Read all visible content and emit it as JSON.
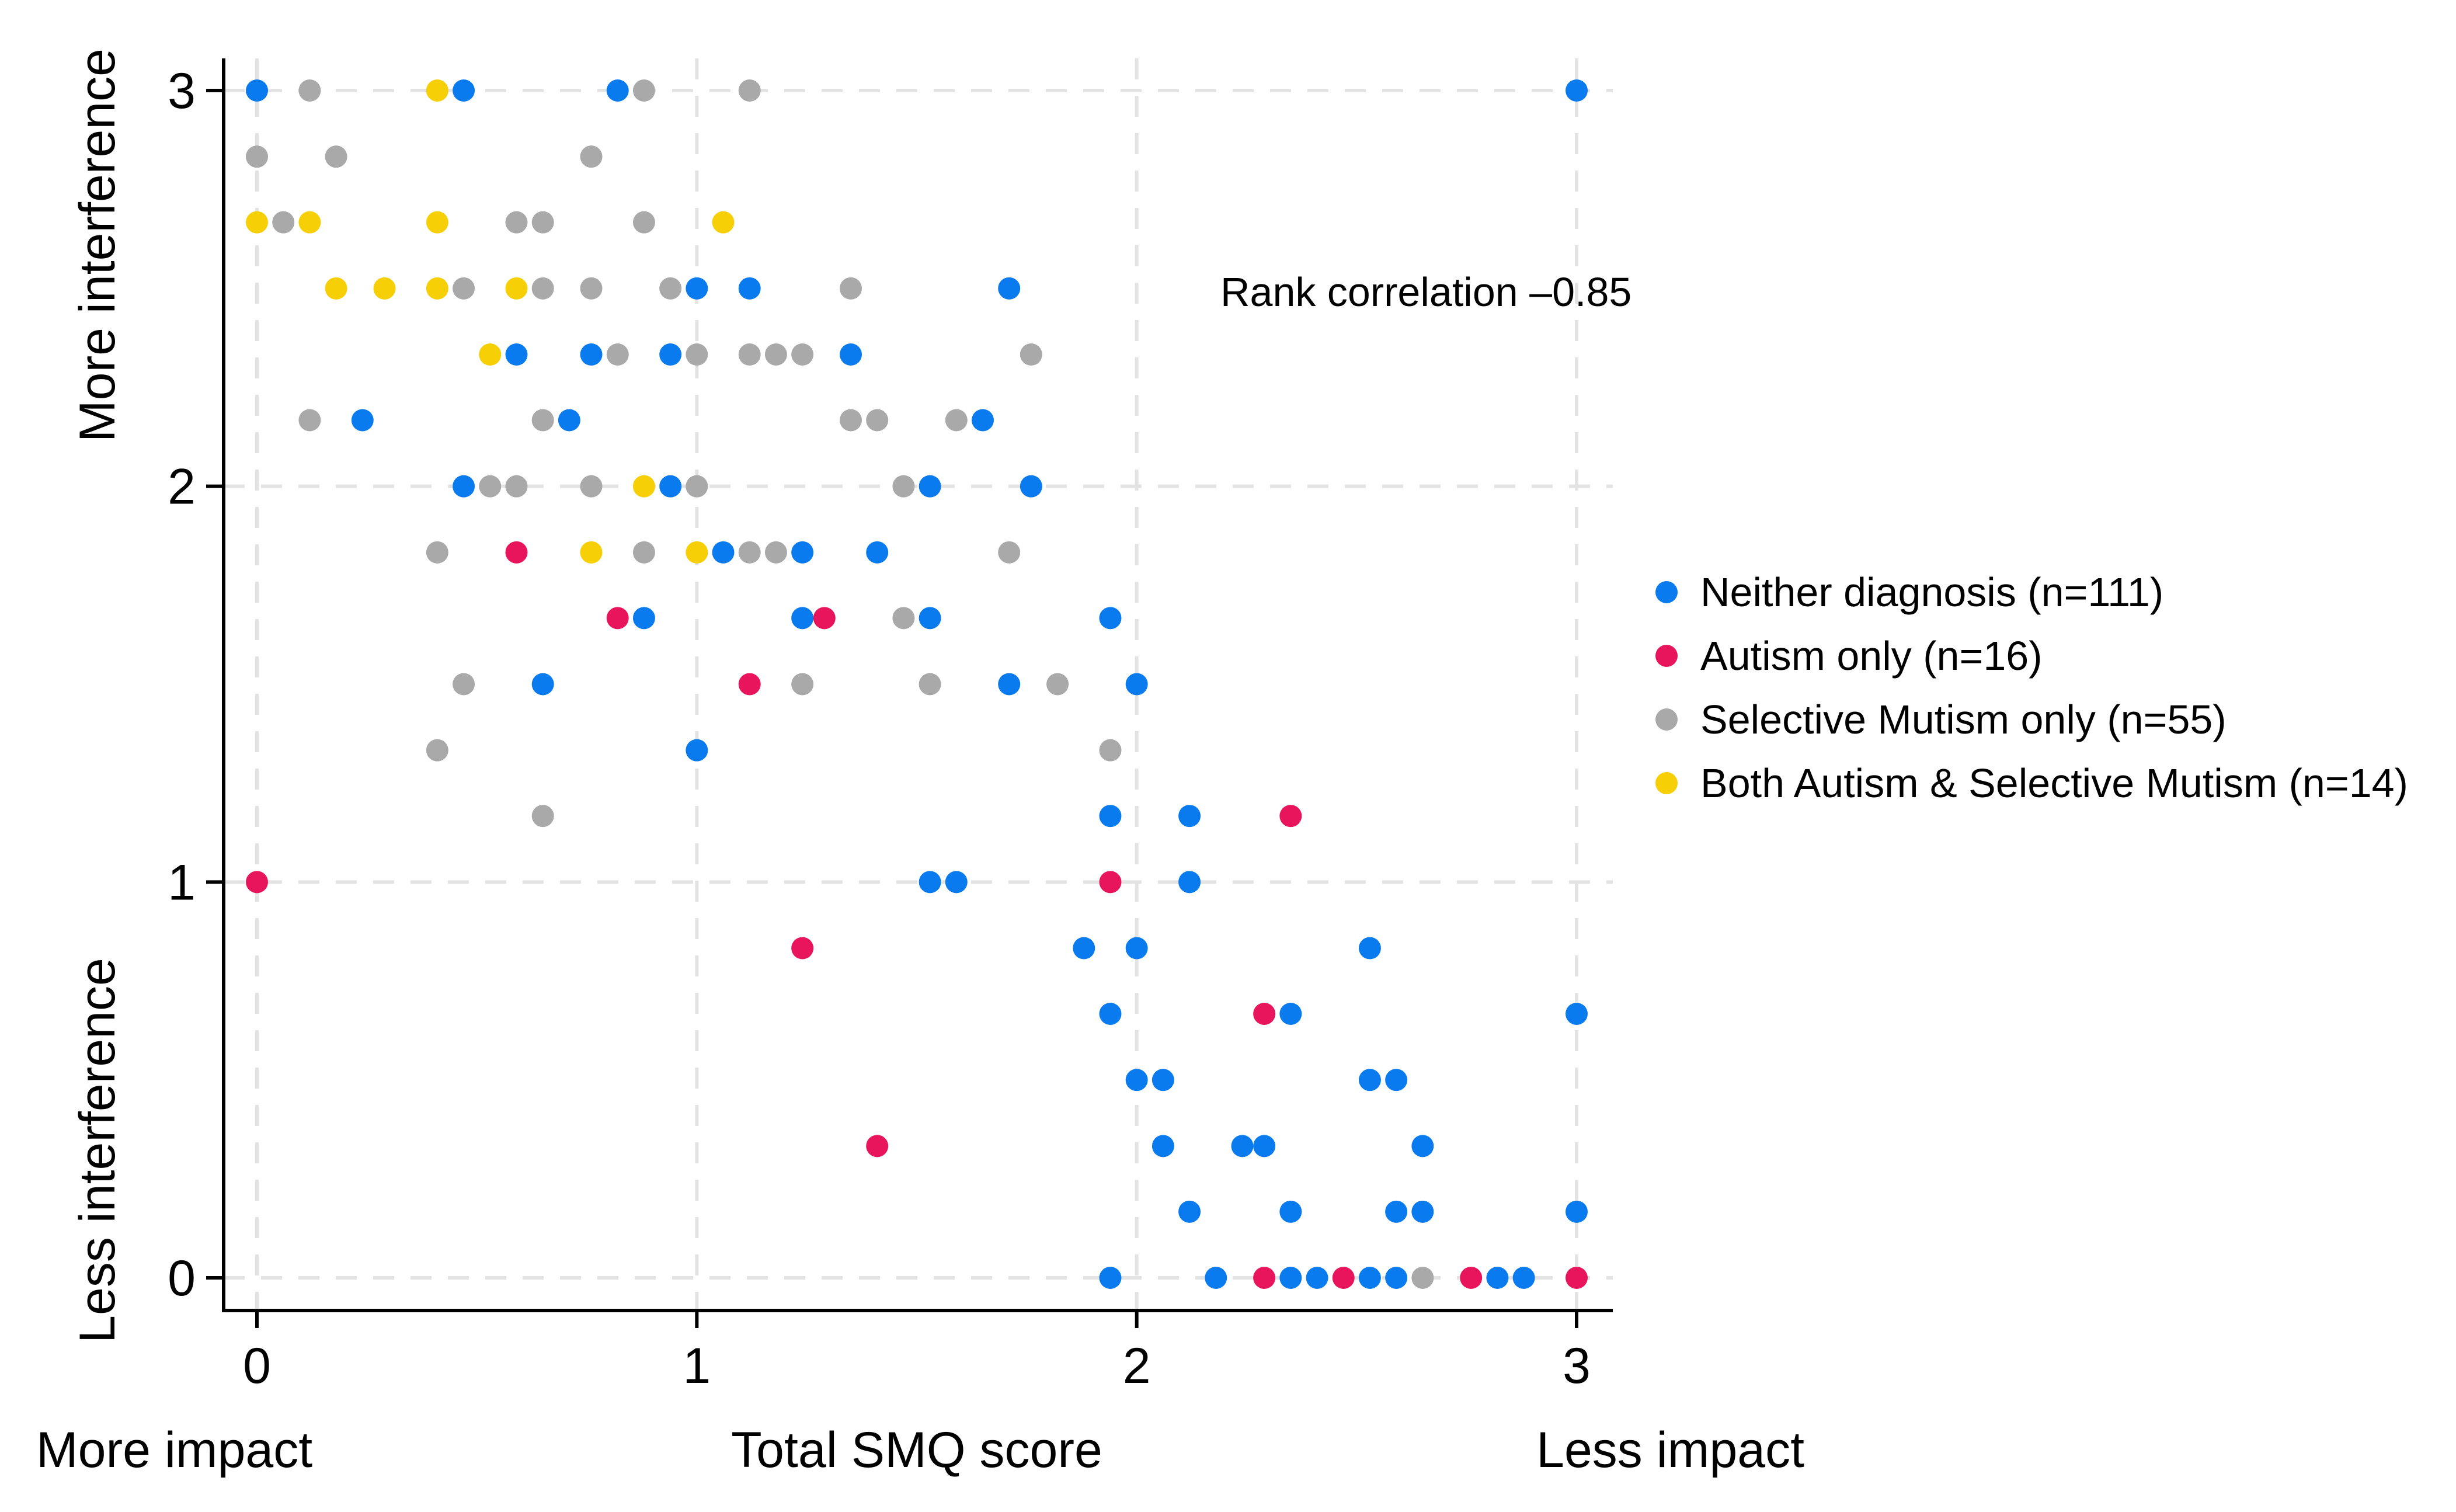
{
  "chart_data": {
    "type": "scatter",
    "title": "",
    "xlabel": "Total SMQ score",
    "xlabel_left": "More impact",
    "xlabel_right": "Less impact",
    "ylabel_top": "More interference",
    "ylabel_bottom": "Less interference",
    "xlim": [
      0,
      3
    ],
    "ylim": [
      0,
      3
    ],
    "x_ticks": [
      "0",
      "1",
      "2",
      "3"
    ],
    "y_ticks": [
      "0",
      "1",
      "2",
      "3"
    ],
    "grid": true,
    "legend_position": "right",
    "annotation": "Rank correlation  –0.85",
    "series": [
      {
        "name": "Neither diagnosis (n=111)",
        "color": "#0a7bef",
        "points": [
          [
            0,
            3
          ],
          [
            0.47,
            3
          ],
          [
            0.82,
            3
          ],
          [
            3,
            3
          ],
          [
            1,
            2.5
          ],
          [
            1.12,
            2.5
          ],
          [
            1.71,
            2.5
          ],
          [
            0.59,
            2.333
          ],
          [
            0.76,
            2.333
          ],
          [
            0.94,
            2.333
          ],
          [
            1.35,
            2.333
          ],
          [
            0.24,
            2.167
          ],
          [
            0.71,
            2.167
          ],
          [
            1.65,
            2.167
          ],
          [
            0.47,
            2
          ],
          [
            0.94,
            2
          ],
          [
            1.53,
            2
          ],
          [
            1.76,
            2
          ],
          [
            1.06,
            1.833
          ],
          [
            1.24,
            1.833
          ],
          [
            1.41,
            1.833
          ],
          [
            0.88,
            1.667
          ],
          [
            1.24,
            1.667
          ],
          [
            1.53,
            1.667
          ],
          [
            1.94,
            1.667
          ],
          [
            0.65,
            1.5
          ],
          [
            1.71,
            1.5
          ],
          [
            2,
            1.5
          ],
          [
            1,
            1.333
          ],
          [
            1.94,
            1.167
          ],
          [
            2.12,
            1.167
          ],
          [
            1.53,
            1
          ],
          [
            1.59,
            1
          ],
          [
            2.12,
            1
          ],
          [
            1.88,
            0.833
          ],
          [
            2,
            0.833
          ],
          [
            2.53,
            0.833
          ],
          [
            1.94,
            0.667
          ],
          [
            2.35,
            0.667
          ],
          [
            3,
            0.667
          ],
          [
            2,
            0.5
          ],
          [
            2.06,
            0.5
          ],
          [
            2.53,
            0.5
          ],
          [
            2.59,
            0.5
          ],
          [
            2.06,
            0.333
          ],
          [
            2.24,
            0.333
          ],
          [
            2.29,
            0.333
          ],
          [
            2.65,
            0.333
          ],
          [
            2.12,
            0.167
          ],
          [
            2.35,
            0.167
          ],
          [
            2.59,
            0.167
          ],
          [
            2.65,
            0.167
          ],
          [
            3,
            0.167
          ],
          [
            1.94,
            0
          ],
          [
            2.18,
            0
          ],
          [
            2.35,
            0
          ],
          [
            2.41,
            0
          ],
          [
            2.53,
            0
          ],
          [
            2.59,
            0
          ],
          [
            2.82,
            0
          ],
          [
            2.88,
            0
          ]
        ]
      },
      {
        "name": "Autism only (n=16)",
        "color": "#e8155c",
        "points": [
          [
            0.59,
            1.833
          ],
          [
            0.82,
            1.667
          ],
          [
            1.29,
            1.667
          ],
          [
            1.12,
            1.5
          ],
          [
            0,
            1
          ],
          [
            1.94,
            1
          ],
          [
            2.35,
            1.167
          ],
          [
            1.24,
            0.833
          ],
          [
            2.29,
            0.667
          ],
          [
            1.41,
            0.333
          ],
          [
            2.29,
            0
          ],
          [
            2.47,
            0
          ],
          [
            2.76,
            0
          ],
          [
            3,
            0
          ]
        ]
      },
      {
        "name": "Selective Mutism only (n=55)",
        "color": "#a9a9a9",
        "points": [
          [
            0.12,
            3
          ],
          [
            0.88,
            3
          ],
          [
            1.12,
            3
          ],
          [
            0,
            2.833
          ],
          [
            0.18,
            2.833
          ],
          [
            0.76,
            2.833
          ],
          [
            0.06,
            2.667
          ],
          [
            0.59,
            2.667
          ],
          [
            0.65,
            2.667
          ],
          [
            0.88,
            2.667
          ],
          [
            0.47,
            2.5
          ],
          [
            0.65,
            2.5
          ],
          [
            0.76,
            2.5
          ],
          [
            0.94,
            2.5
          ],
          [
            1.35,
            2.5
          ],
          [
            0.82,
            2.333
          ],
          [
            1,
            2.333
          ],
          [
            1.12,
            2.333
          ],
          [
            1.18,
            2.333
          ],
          [
            1.24,
            2.333
          ],
          [
            1.76,
            2.333
          ],
          [
            0.12,
            2.167
          ],
          [
            0.65,
            2.167
          ],
          [
            1.35,
            2.167
          ],
          [
            1.41,
            2.167
          ],
          [
            1.59,
            2.167
          ],
          [
            0.53,
            2
          ],
          [
            0.59,
            2
          ],
          [
            0.76,
            2
          ],
          [
            1,
            2
          ],
          [
            1.47,
            2
          ],
          [
            0.41,
            1.833
          ],
          [
            0.88,
            1.833
          ],
          [
            1.12,
            1.833
          ],
          [
            1.18,
            1.833
          ],
          [
            1.71,
            1.833
          ],
          [
            1.47,
            1.667
          ],
          [
            0.47,
            1.5
          ],
          [
            1.24,
            1.5
          ],
          [
            1.53,
            1.5
          ],
          [
            1.82,
            1.5
          ],
          [
            0.41,
            1.333
          ],
          [
            1.94,
            1.333
          ],
          [
            0.65,
            1.167
          ],
          [
            2.65,
            0
          ]
        ]
      },
      {
        "name": "Both Autism & Selective Mutism (n=14)",
        "color": "#f7cf06",
        "points": [
          [
            0.41,
            3
          ],
          [
            0,
            2.667
          ],
          [
            0.12,
            2.667
          ],
          [
            0.41,
            2.667
          ],
          [
            1.06,
            2.667
          ],
          [
            0.18,
            2.5
          ],
          [
            0.29,
            2.5
          ],
          [
            0.41,
            2.5
          ],
          [
            0.59,
            2.5
          ],
          [
            0.53,
            2.333
          ],
          [
            0.88,
            2
          ],
          [
            0.76,
            1.833
          ],
          [
            1,
            1.833
          ]
        ]
      }
    ]
  }
}
